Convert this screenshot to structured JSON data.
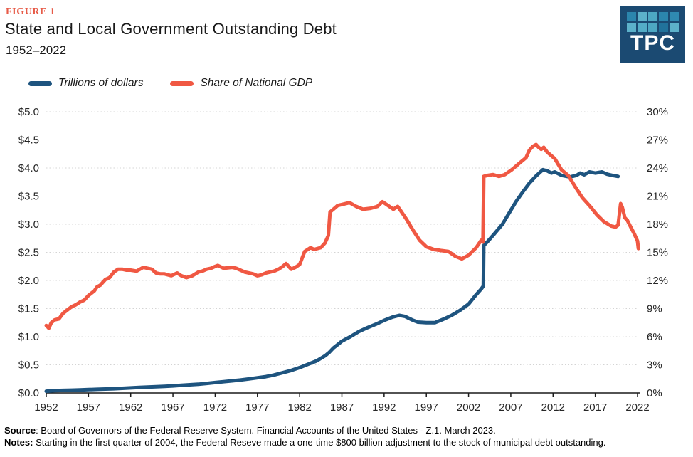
{
  "figure_label": "FIGURE 1",
  "title": "State and Local Government Outstanding Debt",
  "subtitle": "1952–2022",
  "logo": {
    "text": "TPC",
    "bg_color": "#1b4a72",
    "square_colors": [
      "#2b85ad",
      "#5cb1ca",
      "#4da8c3",
      "#2b85ad",
      "#2f89b1",
      "#5cb1ca",
      "#54adc7",
      "#4da8c3",
      "#21729b",
      "#5cb1ca"
    ]
  },
  "legend": [
    {
      "label": "Trillions of dollars",
      "color": "#1e547f"
    },
    {
      "label": "Share of National GDP",
      "color": "#f05843"
    }
  ],
  "source": {
    "label": "Source",
    "text": ": Board of Governors of the Federal Reserve System. Financial Accounts of the United States - Z.1. March 2023."
  },
  "notes": {
    "label": "Notes:",
    "text": " Starting in the first quarter of 2004, the Federal Reseve made a one-time $800 billion adjustment to the stock of municipal debt outstanding."
  },
  "chart_data": {
    "type": "line",
    "title": "State and Local Government Outstanding Debt, 1952-2022",
    "grid": "horizontal-dotted",
    "legend_position": "top-left",
    "x_range": [
      1952,
      2022.3
    ],
    "x_tick_years": [
      1952,
      1957,
      1962,
      1967,
      1972,
      1977,
      1982,
      1987,
      1992,
      1997,
      2002,
      2007,
      2012,
      2017,
      2022
    ],
    "x_tick_labels": [
      "1952",
      "1957",
      "1962",
      "1967",
      "1972",
      "1977",
      "1982",
      "1987",
      "1992",
      "1997",
      "2002",
      "2007",
      "2012",
      "2017",
      "2022"
    ],
    "left_axis": {
      "label": "Trillions of dollars",
      "lim": [
        0,
        5
      ],
      "tick_labels": [
        "$5.0",
        "$4.5",
        "$4.0",
        "$3.5",
        "$3.0",
        "$2.5",
        "$2.0",
        "$1.5",
        "$1.0",
        "$0.5",
        "$0.0"
      ]
    },
    "right_axis": {
      "label": "Share of National GDP",
      "lim": [
        0,
        30
      ],
      "tick_labels": [
        "30%",
        "27%",
        "24%",
        "21%",
        "18%",
        "15%",
        "12%",
        "9%",
        "6%",
        "3%",
        "0%"
      ]
    },
    "series": [
      {
        "name": "Trillions of dollars",
        "axis": "left",
        "color": "#1e547f",
        "unit": "trillions USD",
        "points": [
          [
            1952,
            0.03
          ],
          [
            1953,
            0.04
          ],
          [
            1954,
            0.045
          ],
          [
            1955,
            0.05
          ],
          [
            1956,
            0.055
          ],
          [
            1957,
            0.06
          ],
          [
            1958,
            0.065
          ],
          [
            1959,
            0.07
          ],
          [
            1960,
            0.075
          ],
          [
            1961,
            0.082
          ],
          [
            1962,
            0.09
          ],
          [
            1963,
            0.097
          ],
          [
            1964,
            0.105
          ],
          [
            1965,
            0.112
          ],
          [
            1966,
            0.118
          ],
          [
            1967,
            0.125
          ],
          [
            1968,
            0.135
          ],
          [
            1969,
            0.145
          ],
          [
            1970,
            0.155
          ],
          [
            1971,
            0.17
          ],
          [
            1972,
            0.185
          ],
          [
            1973,
            0.2
          ],
          [
            1974,
            0.215
          ],
          [
            1975,
            0.23
          ],
          [
            1976,
            0.25
          ],
          [
            1977,
            0.27
          ],
          [
            1978,
            0.29
          ],
          [
            1979,
            0.32
          ],
          [
            1980,
            0.36
          ],
          [
            1981,
            0.4
          ],
          [
            1982,
            0.45
          ],
          [
            1983,
            0.51
          ],
          [
            1984,
            0.57
          ],
          [
            1985,
            0.66
          ],
          [
            1985.5,
            0.72
          ],
          [
            1986,
            0.8
          ],
          [
            1986.5,
            0.86
          ],
          [
            1987,
            0.92
          ],
          [
            1988,
            1.0
          ],
          [
            1989,
            1.09
          ],
          [
            1990,
            1.16
          ],
          [
            1991,
            1.22
          ],
          [
            1992,
            1.29
          ],
          [
            1993,
            1.35
          ],
          [
            1993.8,
            1.38
          ],
          [
            1994.5,
            1.36
          ],
          [
            1995.3,
            1.3
          ],
          [
            1996,
            1.26
          ],
          [
            1997,
            1.25
          ],
          [
            1998,
            1.25
          ],
          [
            1999,
            1.31
          ],
          [
            2000,
            1.38
          ],
          [
            2001,
            1.47
          ],
          [
            2002,
            1.58
          ],
          [
            2002.8,
            1.73
          ],
          [
            2003.5,
            1.85
          ],
          [
            2003.75,
            1.9
          ],
          [
            2003.8,
            2.62
          ],
          [
            2004.3,
            2.7
          ],
          [
            2005,
            2.82
          ],
          [
            2006,
            3.0
          ],
          [
            2006.8,
            3.2
          ],
          [
            2007.6,
            3.4
          ],
          [
            2008.4,
            3.57
          ],
          [
            2009.2,
            3.73
          ],
          [
            2010,
            3.86
          ],
          [
            2010.8,
            3.97
          ],
          [
            2011.3,
            3.95
          ],
          [
            2011.8,
            3.91
          ],
          [
            2012.2,
            3.93
          ],
          [
            2013,
            3.87
          ],
          [
            2014,
            3.84
          ],
          [
            2014.8,
            3.87
          ],
          [
            2015.2,
            3.91
          ],
          [
            2015.7,
            3.88
          ],
          [
            2016.3,
            3.93
          ],
          [
            2017,
            3.91
          ],
          [
            2017.8,
            3.93
          ],
          [
            2018.4,
            3.89
          ],
          [
            2019,
            3.87
          ],
          [
            2019.7,
            3.85
          ]
        ]
      },
      {
        "name": "Share of National GDP",
        "axis": "right",
        "color": "#f05843",
        "unit": "percent",
        "points": [
          [
            1952,
            7.2
          ],
          [
            1952.3,
            6.9
          ],
          [
            1952.6,
            7.5
          ],
          [
            1953,
            7.8
          ],
          [
            1953.5,
            7.9
          ],
          [
            1954,
            8.5
          ],
          [
            1955,
            9.2
          ],
          [
            1955.5,
            9.4
          ],
          [
            1956,
            9.7
          ],
          [
            1956.5,
            9.9
          ],
          [
            1957,
            10.4
          ],
          [
            1957.7,
            10.9
          ],
          [
            1958,
            11.3
          ],
          [
            1958.4,
            11.5
          ],
          [
            1959,
            12.1
          ],
          [
            1959.5,
            12.3
          ],
          [
            1960,
            12.9
          ],
          [
            1960.5,
            13.2
          ],
          [
            1961,
            13.2
          ],
          [
            1961.5,
            13.1
          ],
          [
            1962,
            13.1
          ],
          [
            1962.7,
            13.0
          ],
          [
            1963.5,
            13.4
          ],
          [
            1964,
            13.3
          ],
          [
            1964.5,
            13.2
          ],
          [
            1965,
            12.8
          ],
          [
            1965.5,
            12.7
          ],
          [
            1966,
            12.7
          ],
          [
            1966.8,
            12.5
          ],
          [
            1967.5,
            12.8
          ],
          [
            1968,
            12.5
          ],
          [
            1968.6,
            12.3
          ],
          [
            1969.3,
            12.5
          ],
          [
            1970,
            12.9
          ],
          [
            1970.5,
            13.0
          ],
          [
            1971,
            13.2
          ],
          [
            1971.5,
            13.3
          ],
          [
            1972,
            13.5
          ],
          [
            1972.3,
            13.6
          ],
          [
            1973,
            13.3
          ],
          [
            1974,
            13.4
          ],
          [
            1974.5,
            13.3
          ],
          [
            1975,
            13.1
          ],
          [
            1975.5,
            12.9
          ],
          [
            1976,
            12.8
          ],
          [
            1976.5,
            12.7
          ],
          [
            1977,
            12.5
          ],
          [
            1977.5,
            12.6
          ],
          [
            1978,
            12.8
          ],
          [
            1978.5,
            12.9
          ],
          [
            1979,
            13.0
          ],
          [
            1979.5,
            13.2
          ],
          [
            1980,
            13.5
          ],
          [
            1980.4,
            13.8
          ],
          [
            1981,
            13.2
          ],
          [
            1981.5,
            13.4
          ],
          [
            1982,
            13.7
          ],
          [
            1982.6,
            15.1
          ],
          [
            1983.3,
            15.5
          ],
          [
            1983.7,
            15.3
          ],
          [
            1984.5,
            15.5
          ],
          [
            1985,
            16.0
          ],
          [
            1985.4,
            16.8
          ],
          [
            1985.6,
            19.3
          ],
          [
            1986,
            19.6
          ],
          [
            1986.5,
            20.0
          ],
          [
            1987,
            20.1
          ],
          [
            1987.9,
            20.3
          ],
          [
            1988.7,
            19.9
          ],
          [
            1989.5,
            19.6
          ],
          [
            1990.4,
            19.7
          ],
          [
            1991.2,
            19.9
          ],
          [
            1991.8,
            20.4
          ],
          [
            1992.3,
            20.1
          ],
          [
            1993.1,
            19.6
          ],
          [
            1993.6,
            19.9
          ],
          [
            1994,
            19.4
          ],
          [
            1994.6,
            18.6
          ],
          [
            1995.4,
            17.4
          ],
          [
            1996.2,
            16.3
          ],
          [
            1997,
            15.6
          ],
          [
            1997.9,
            15.3
          ],
          [
            1998.7,
            15.2
          ],
          [
            1999.6,
            15.1
          ],
          [
            2000.4,
            14.6
          ],
          [
            2001.2,
            14.3
          ],
          [
            2002,
            14.7
          ],
          [
            2002.9,
            15.5
          ],
          [
            2003.5,
            16.3
          ],
          [
            2003.7,
            16.1
          ],
          [
            2003.8,
            23.1
          ],
          [
            2004.2,
            23.2
          ],
          [
            2004.9,
            23.3
          ],
          [
            2005.6,
            23.1
          ],
          [
            2006.3,
            23.3
          ],
          [
            2007.1,
            23.8
          ],
          [
            2008,
            24.5
          ],
          [
            2008.8,
            25.1
          ],
          [
            2009.2,
            25.9
          ],
          [
            2009.6,
            26.3
          ],
          [
            2010,
            26.5
          ],
          [
            2010.3,
            26.2
          ],
          [
            2010.6,
            26.0
          ],
          [
            2010.9,
            26.2
          ],
          [
            2011.3,
            25.7
          ],
          [
            2012.2,
            25.0
          ],
          [
            2013,
            23.8
          ],
          [
            2013.8,
            23.2
          ],
          [
            2014.7,
            21.9
          ],
          [
            2015.5,
            20.8
          ],
          [
            2016.4,
            19.9
          ],
          [
            2017.2,
            19.0
          ],
          [
            2018,
            18.3
          ],
          [
            2018.9,
            17.8
          ],
          [
            2019.4,
            17.7
          ],
          [
            2019.7,
            17.9
          ],
          [
            2020,
            20.2
          ],
          [
            2020.2,
            19.8
          ],
          [
            2020.5,
            18.7
          ],
          [
            2020.8,
            18.4
          ],
          [
            2021.2,
            17.7
          ],
          [
            2021.6,
            17.0
          ],
          [
            2022,
            16.2
          ],
          [
            2022.1,
            15.4
          ]
        ]
      }
    ]
  }
}
